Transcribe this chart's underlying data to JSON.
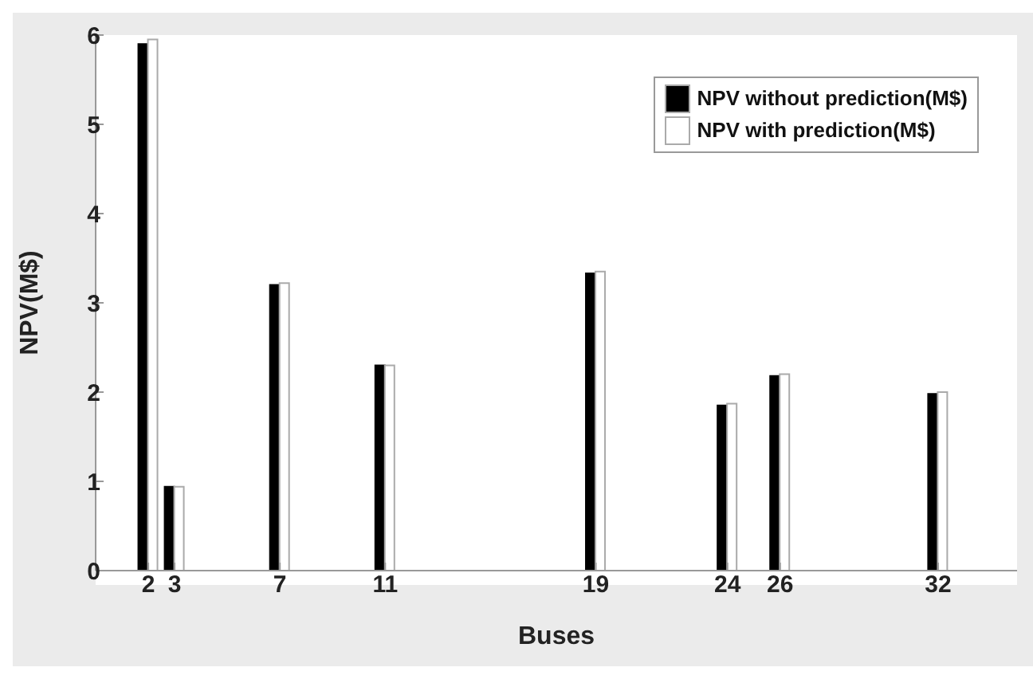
{
  "chart_data": {
    "type": "bar",
    "xlabel": "Buses",
    "ylabel": "NPV(M$)",
    "x": [
      2,
      3,
      7,
      11,
      19,
      24,
      26,
      32
    ],
    "series": [
      {
        "name": "NPV  without prediction(M$)",
        "color": "#000000",
        "values": [
          5.9,
          0.94,
          3.2,
          2.3,
          3.33,
          1.85,
          2.18,
          1.98
        ]
      },
      {
        "name": "NPV  with prediction(M$)",
        "color": "#ffffff",
        "values": [
          5.95,
          0.94,
          3.22,
          2.3,
          3.35,
          1.87,
          2.2,
          2.0
        ]
      }
    ],
    "xlim": [
      0,
      35
    ],
    "xticks": [
      2,
      3,
      7,
      11,
      19,
      24,
      26,
      32
    ],
    "ylim": [
      0,
      6
    ],
    "yticks": [
      0,
      1,
      2,
      3,
      4,
      5,
      6
    ],
    "grid": false,
    "legend": "top right"
  }
}
